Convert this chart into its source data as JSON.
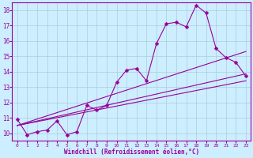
{
  "xlabel": "Windchill (Refroidissement éolien,°C)",
  "xlim": [
    -0.5,
    23.5
  ],
  "ylim": [
    9.5,
    18.5
  ],
  "xticks": [
    0,
    1,
    2,
    3,
    4,
    5,
    6,
    7,
    8,
    9,
    10,
    11,
    12,
    13,
    14,
    15,
    16,
    17,
    18,
    19,
    20,
    21,
    22,
    23
  ],
  "yticks": [
    10,
    11,
    12,
    13,
    14,
    15,
    16,
    17,
    18
  ],
  "background_color": "#cceeff",
  "grid_color": "#aaccdd",
  "line_color": "#990099",
  "main_series_x": [
    0,
    1,
    2,
    3,
    4,
    5,
    6,
    7,
    8,
    9,
    10,
    11,
    12,
    13,
    14,
    15,
    16,
    17,
    18,
    19,
    20,
    21,
    22,
    23
  ],
  "main_series_y": [
    10.9,
    9.9,
    10.1,
    10.2,
    10.8,
    9.9,
    10.1,
    11.8,
    11.5,
    11.8,
    13.3,
    14.1,
    14.2,
    13.4,
    15.8,
    17.1,
    17.2,
    16.9,
    18.3,
    17.8,
    15.5,
    14.9,
    14.6,
    13.7
  ],
  "trend_lines": [
    {
      "x": [
        0,
        23
      ],
      "y": [
        10.5,
        15.3
      ]
    },
    {
      "x": [
        0,
        23
      ],
      "y": [
        10.5,
        13.85
      ]
    },
    {
      "x": [
        0,
        23
      ],
      "y": [
        10.5,
        13.4
      ]
    }
  ]
}
